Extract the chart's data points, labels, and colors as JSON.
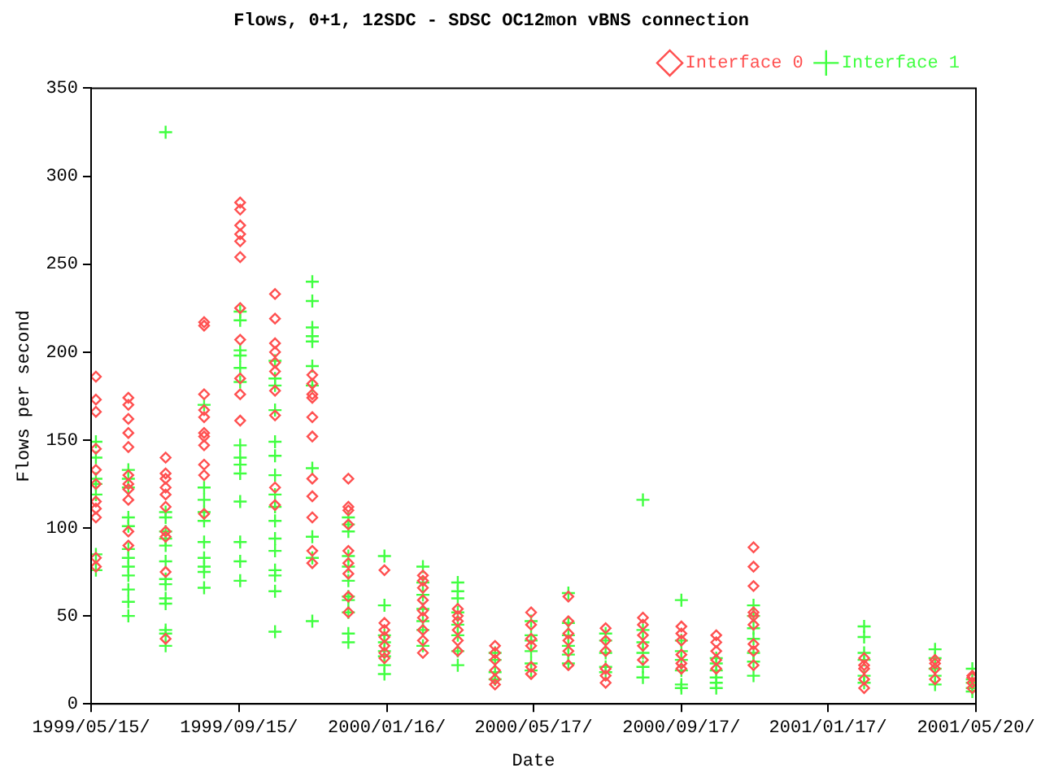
{
  "chart_data": {
    "type": "scatter",
    "title": "Flows, 0+1, 12SDC - SDSC OC12mon vBNS connection",
    "xlabel": "Date",
    "ylabel": "Flows per second",
    "xlim": [
      "1999-05-15",
      "2001-05-20"
    ],
    "xticks": [
      {
        "value": "1999-05-15",
        "label": "1999/05/15/"
      },
      {
        "value": "1999-09-15",
        "label": "1999/09/15/"
      },
      {
        "value": "2000-01-16",
        "label": "2000/01/16/"
      },
      {
        "value": "2000-05-17",
        "label": "2000/05/17/"
      },
      {
        "value": "2000-09-17",
        "label": "2000/09/17/"
      },
      {
        "value": "2001-01-17",
        "label": "2001/01/17/"
      },
      {
        "value": "2001-05-20",
        "label": "2001/05/20/"
      }
    ],
    "ylim": [
      0,
      350
    ],
    "yticks": [
      0,
      50,
      100,
      150,
      200,
      250,
      300,
      350
    ],
    "grid": false,
    "legend": "top right",
    "series": [
      {
        "name": "Interface 0",
        "color": "#ff5050",
        "marker": "diamond",
        "x": [
          "1999-05-19",
          "1999-05-19",
          "1999-05-19",
          "1999-05-19",
          "1999-05-19",
          "1999-05-19",
          "1999-05-19",
          "1999-05-19",
          "1999-05-19",
          "1999-05-19",
          "1999-05-19",
          "1999-06-15",
          "1999-06-15",
          "1999-06-15",
          "1999-06-15",
          "1999-06-15",
          "1999-06-15",
          "1999-06-15",
          "1999-06-15",
          "1999-06-15",
          "1999-06-15",
          "1999-06-15",
          "1999-07-16",
          "1999-07-16",
          "1999-07-16",
          "1999-07-16",
          "1999-07-16",
          "1999-07-16",
          "1999-07-16",
          "1999-07-16",
          "1999-07-16",
          "1999-07-16",
          "1999-08-17",
          "1999-08-17",
          "1999-08-17",
          "1999-08-17",
          "1999-08-17",
          "1999-08-17",
          "1999-08-17",
          "1999-08-17",
          "1999-08-17",
          "1999-08-17",
          "1999-08-17",
          "1999-09-16",
          "1999-09-16",
          "1999-09-16",
          "1999-09-16",
          "1999-09-16",
          "1999-09-16",
          "1999-09-16",
          "1999-09-16",
          "1999-09-16",
          "1999-09-16",
          "1999-09-16",
          "1999-10-15",
          "1999-10-15",
          "1999-10-15",
          "1999-10-15",
          "1999-10-15",
          "1999-10-15",
          "1999-10-15",
          "1999-10-15",
          "1999-10-15",
          "1999-10-15",
          "1999-11-15",
          "1999-11-15",
          "1999-11-15",
          "1999-11-15",
          "1999-11-15",
          "1999-11-15",
          "1999-11-15",
          "1999-11-15",
          "1999-11-15",
          "1999-11-15",
          "1999-11-15",
          "1999-12-15",
          "1999-12-15",
          "1999-12-15",
          "1999-12-15",
          "1999-12-15",
          "1999-12-15",
          "1999-12-15",
          "1999-12-15",
          "1999-12-15",
          "2000-01-14",
          "2000-01-14",
          "2000-01-14",
          "2000-01-14",
          "2000-01-14",
          "2000-01-14",
          "2000-01-14",
          "2000-02-15",
          "2000-02-15",
          "2000-02-15",
          "2000-02-15",
          "2000-02-15",
          "2000-02-15",
          "2000-02-15",
          "2000-02-15",
          "2000-02-15",
          "2000-03-15",
          "2000-03-15",
          "2000-03-15",
          "2000-03-15",
          "2000-03-15",
          "2000-03-15",
          "2000-04-15",
          "2000-04-15",
          "2000-04-15",
          "2000-04-15",
          "2000-04-15",
          "2000-04-15",
          "2000-05-15",
          "2000-05-15",
          "2000-05-15",
          "2000-05-15",
          "2000-05-15",
          "2000-05-15",
          "2000-06-15",
          "2000-06-15",
          "2000-06-15",
          "2000-06-15",
          "2000-06-15",
          "2000-06-15",
          "2000-07-16",
          "2000-07-16",
          "2000-07-16",
          "2000-07-16",
          "2000-07-16",
          "2000-07-16",
          "2000-08-16",
          "2000-08-16",
          "2000-08-16",
          "2000-08-16",
          "2000-08-16",
          "2000-09-17",
          "2000-09-17",
          "2000-09-17",
          "2000-09-17",
          "2000-09-17",
          "2000-09-17",
          "2000-10-16",
          "2000-10-16",
          "2000-10-16",
          "2000-10-16",
          "2000-10-16",
          "2000-11-16",
          "2000-11-16",
          "2000-11-16",
          "2000-11-16",
          "2000-11-16",
          "2000-11-16",
          "2000-11-16",
          "2000-11-16",
          "2000-11-16",
          "2001-02-16",
          "2001-02-16",
          "2001-02-16",
          "2001-02-16",
          "2001-02-16",
          "2001-04-16",
          "2001-04-16",
          "2001-04-16",
          "2001-04-16",
          "2001-05-17",
          "2001-05-17",
          "2001-05-17",
          "2001-05-17"
        ],
        "values": [
          186,
          173,
          166,
          145,
          133,
          125,
          115,
          111,
          106,
          83,
          78,
          174,
          170,
          162,
          154,
          146,
          130,
          125,
          122,
          116,
          98,
          90,
          140,
          131,
          128,
          123,
          119,
          112,
          98,
          95,
          75,
          37,
          217,
          215,
          176,
          167,
          163,
          154,
          152,
          147,
          136,
          130,
          108,
          285,
          281,
          272,
          267,
          263,
          254,
          225,
          207,
          185,
          176,
          161,
          233,
          219,
          205,
          200,
          194,
          189,
          178,
          164,
          123,
          113,
          187,
          182,
          176,
          174,
          163,
          152,
          128,
          118,
          106,
          87,
          80,
          128,
          112,
          110,
          102,
          87,
          80,
          74,
          61,
          52,
          76,
          46,
          42,
          38,
          33,
          29,
          26,
          73,
          70,
          66,
          59,
          53,
          49,
          42,
          36,
          29,
          54,
          50,
          47,
          42,
          36,
          30,
          33,
          29,
          25,
          19,
          14,
          11,
          52,
          45,
          37,
          33,
          21,
          17,
          61,
          47,
          40,
          36,
          30,
          22,
          43,
          36,
          30,
          20,
          16,
          12,
          49,
          45,
          39,
          33,
          25,
          44,
          40,
          36,
          28,
          23,
          20,
          39,
          35,
          30,
          25,
          20,
          89,
          78,
          67,
          52,
          50,
          45,
          34,
          30,
          22,
          26,
          22,
          20,
          14,
          9,
          25,
          23,
          20,
          14,
          16,
          15,
          12,
          9
        ]
      },
      {
        "name": "Interface 1",
        "color": "#40ff40",
        "marker": "cross",
        "x": [
          "1999-05-19",
          "1999-05-19",
          "1999-05-19",
          "1999-05-19",
          "1999-05-19",
          "1999-05-19",
          "1999-05-19",
          "1999-06-15",
          "1999-06-15",
          "1999-06-15",
          "1999-06-15",
          "1999-06-15",
          "1999-06-15",
          "1999-06-15",
          "1999-06-15",
          "1999-06-15",
          "1999-06-15",
          "1999-06-15",
          "1999-06-15",
          "1999-07-16",
          "1999-07-16",
          "1999-07-16",
          "1999-07-16",
          "1999-07-16",
          "1999-07-16",
          "1999-07-16",
          "1999-07-16",
          "1999-07-16",
          "1999-07-16",
          "1999-07-16",
          "1999-07-16",
          "1999-07-16",
          "1999-07-16",
          "1999-08-17",
          "1999-08-17",
          "1999-08-17",
          "1999-08-17",
          "1999-08-17",
          "1999-08-17",
          "1999-08-17",
          "1999-08-17",
          "1999-08-17",
          "1999-08-17",
          "1999-09-16",
          "1999-09-16",
          "1999-09-16",
          "1999-09-16",
          "1999-09-16",
          "1999-09-16",
          "1999-09-16",
          "1999-09-16",
          "1999-09-16",
          "1999-09-16",
          "1999-09-16",
          "1999-09-16",
          "1999-09-16",
          "1999-09-16",
          "1999-10-15",
          "1999-10-15",
          "1999-10-15",
          "1999-10-15",
          "1999-10-15",
          "1999-10-15",
          "1999-10-15",
          "1999-10-15",
          "1999-10-15",
          "1999-10-15",
          "1999-10-15",
          "1999-10-15",
          "1999-10-15",
          "1999-10-15",
          "1999-10-15",
          "1999-10-15",
          "1999-11-15",
          "1999-11-15",
          "1999-11-15",
          "1999-11-15",
          "1999-11-15",
          "1999-11-15",
          "1999-11-15",
          "1999-11-15",
          "1999-11-15",
          "1999-11-15",
          "1999-11-15",
          "1999-12-15",
          "1999-12-15",
          "1999-12-15",
          "1999-12-15",
          "1999-12-15",
          "1999-12-15",
          "1999-12-15",
          "1999-12-15",
          "1999-12-15",
          "1999-12-15",
          "1999-12-15",
          "2000-01-14",
          "2000-01-14",
          "2000-01-14",
          "2000-01-14",
          "2000-01-14",
          "2000-01-14",
          "2000-01-14",
          "2000-01-14",
          "2000-02-15",
          "2000-02-15",
          "2000-02-15",
          "2000-02-15",
          "2000-02-15",
          "2000-02-15",
          "2000-02-15",
          "2000-03-15",
          "2000-03-15",
          "2000-03-15",
          "2000-03-15",
          "2000-03-15",
          "2000-03-15",
          "2000-03-15",
          "2000-03-15",
          "2000-04-15",
          "2000-04-15",
          "2000-04-15",
          "2000-04-15",
          "2000-05-15",
          "2000-05-15",
          "2000-05-15",
          "2000-05-15",
          "2000-05-15",
          "2000-05-15",
          "2000-06-15",
          "2000-06-15",
          "2000-06-15",
          "2000-06-15",
          "2000-06-15",
          "2000-06-15",
          "2000-07-16",
          "2000-07-16",
          "2000-07-16",
          "2000-07-16",
          "2000-07-16",
          "2000-08-16",
          "2000-08-16",
          "2000-08-16",
          "2000-08-16",
          "2000-08-16",
          "2000-08-16",
          "2000-09-17",
          "2000-09-17",
          "2000-09-17",
          "2000-09-17",
          "2000-09-17",
          "2000-09-17",
          "2000-09-17",
          "2000-10-16",
          "2000-10-16",
          "2000-10-16",
          "2000-10-16",
          "2000-10-16",
          "2000-10-16",
          "2000-11-16",
          "2000-11-16",
          "2000-11-16",
          "2000-11-16",
          "2000-11-16",
          "2000-11-16",
          "2000-11-16",
          "2001-02-16",
          "2001-02-16",
          "2001-02-16",
          "2001-02-16",
          "2001-02-16",
          "2001-02-16",
          "2001-04-16",
          "2001-04-16",
          "2001-04-16",
          "2001-04-16",
          "2001-04-16",
          "2001-05-17",
          "2001-05-17",
          "2001-05-17",
          "2001-05-17",
          "2001-05-17"
        ],
        "values": [
          149,
          140,
          128,
          125,
          119,
          85,
          76,
          133,
          128,
          123,
          106,
          101,
          88,
          83,
          78,
          73,
          65,
          58,
          50,
          325,
          109,
          106,
          98,
          94,
          90,
          81,
          71,
          68,
          60,
          57,
          42,
          40,
          33,
          170,
          123,
          116,
          109,
          104,
          92,
          83,
          78,
          75,
          66,
          223,
          218,
          201,
          198,
          191,
          183,
          147,
          140,
          136,
          131,
          115,
          92,
          81,
          70,
          195,
          185,
          181,
          167,
          149,
          141,
          130,
          119,
          112,
          104,
          94,
          87,
          76,
          73,
          64,
          41,
          240,
          229,
          214,
          209,
          206,
          192,
          181,
          134,
          95,
          83,
          47,
          106,
          102,
          98,
          84,
          78,
          70,
          61,
          59,
          52,
          40,
          35,
          84,
          56,
          39,
          35,
          30,
          27,
          22,
          17,
          78,
          69,
          62,
          54,
          47,
          42,
          33,
          69,
          64,
          60,
          52,
          45,
          39,
          30,
          22,
          29,
          25,
          18,
          14,
          47,
          39,
          36,
          30,
          23,
          19,
          63,
          46,
          39,
          33,
          28,
          23,
          40,
          36,
          29,
          21,
          18,
          116,
          42,
          35,
          29,
          21,
          15,
          59,
          36,
          30,
          25,
          19,
          11,
          9,
          26,
          23,
          19,
          15,
          12,
          9,
          56,
          50,
          43,
          37,
          29,
          24,
          16,
          44,
          38,
          29,
          25,
          16,
          12,
          31,
          26,
          20,
          16,
          11,
          20,
          14,
          12,
          9,
          7
        ]
      }
    ]
  }
}
